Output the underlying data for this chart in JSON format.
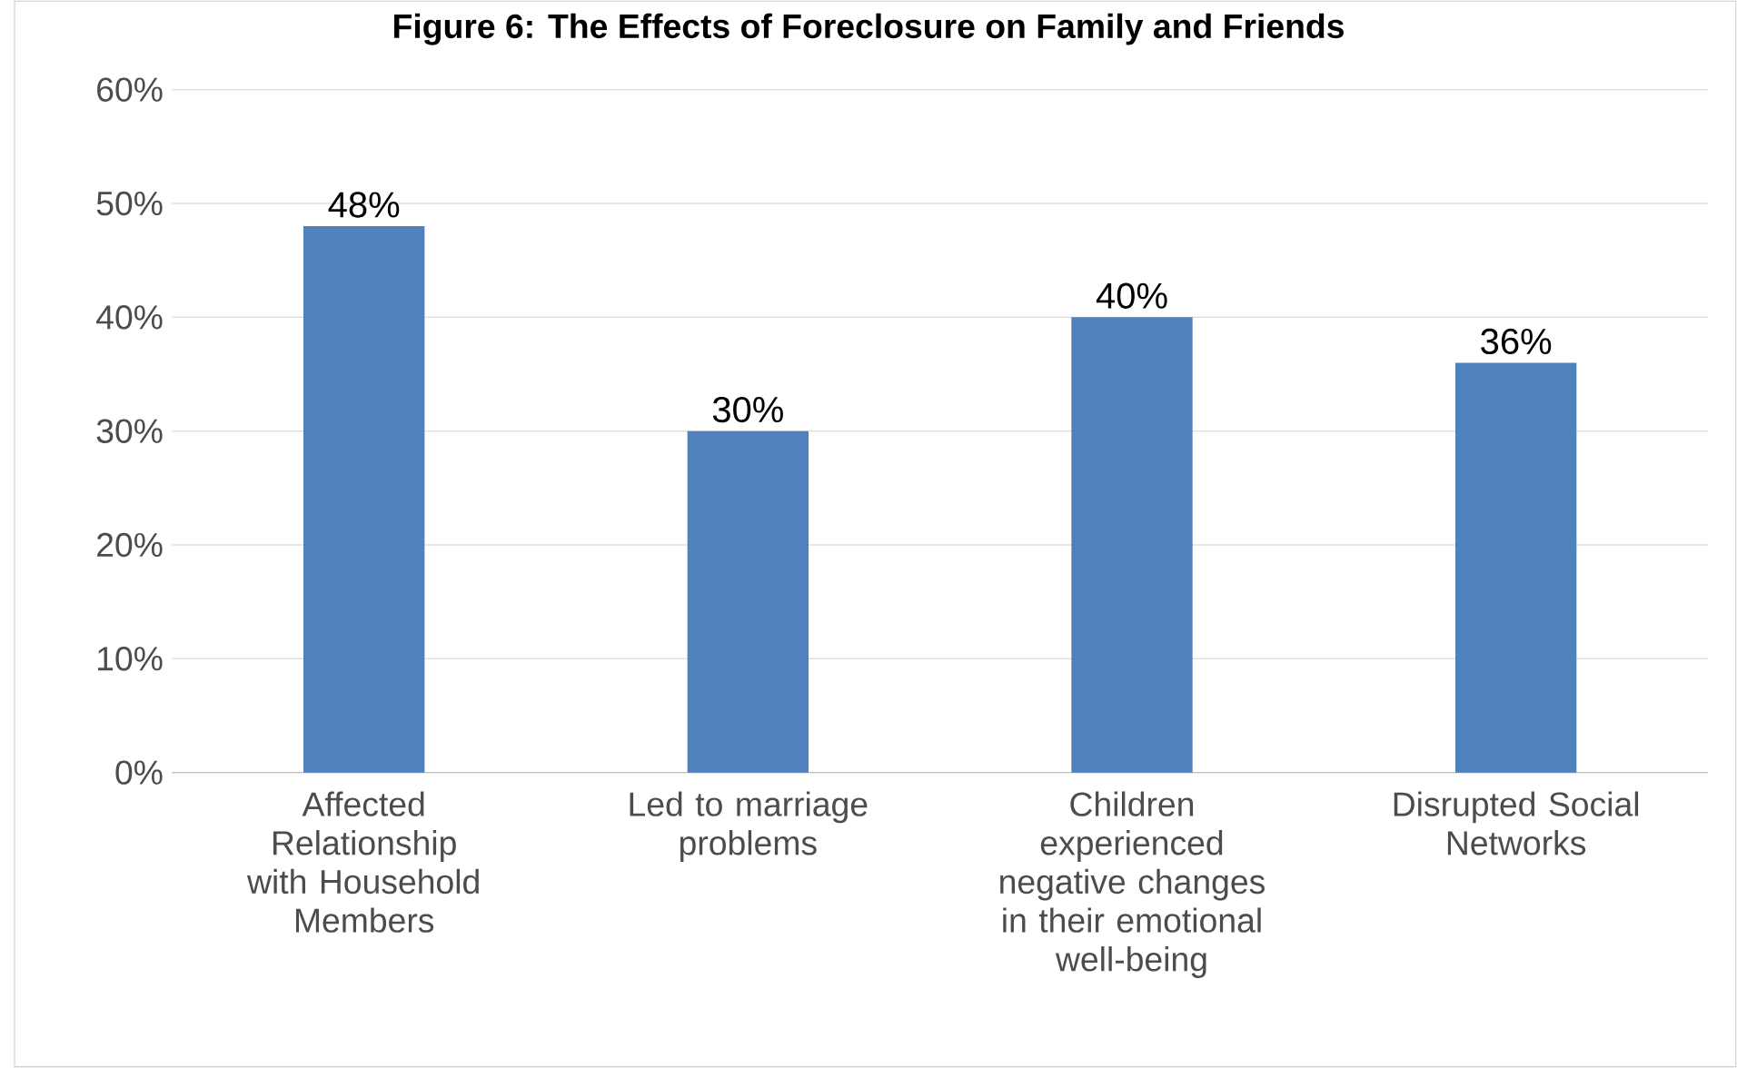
{
  "chart_data": {
    "type": "bar",
    "title": "Figure 6: The Effects of Foreclosure on Family and Friends",
    "categories": [
      "Affected Relationship with Household Members",
      "Led to marriage problems",
      "Children experienced negative changes in their emotional well-being",
      "Disrupted Social Networks"
    ],
    "values": [
      48,
      30,
      40,
      36
    ],
    "color": "#4f81bd",
    "value_labels": [
      "48%",
      "30%",
      "40%",
      "36%"
    ],
    "ylim": [
      0,
      60
    ],
    "yticks": [
      {
        "value": 0,
        "label": "0%"
      },
      {
        "value": 10,
        "label": "10%"
      },
      {
        "value": 20,
        "label": "20%"
      },
      {
        "value": 30,
        "label": "30%"
      },
      {
        "value": 40,
        "label": "40%"
      },
      {
        "value": 50,
        "label": "50%"
      },
      {
        "value": 60,
        "label": "60%"
      }
    ],
    "grid": "y"
  }
}
